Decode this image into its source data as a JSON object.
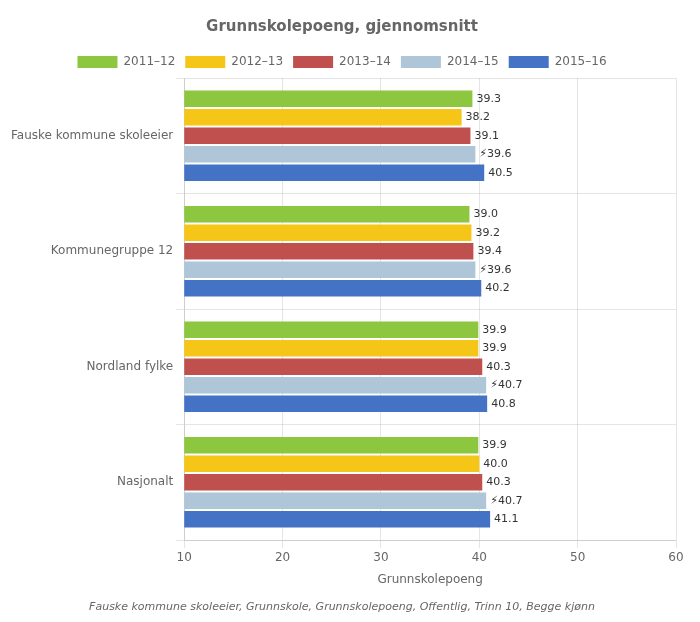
{
  "chart_data": {
    "type": "bar",
    "orientation": "horizontal",
    "title": "Grunnskolepoeng, gjennomsnitt",
    "xlabel": "Grunnskolepoeng",
    "annotations": [
      "Fauske kommune skoleeier, Grunnskole, Grunnskolepoeng, Offentlig, Trinn 10, Begge kjønn"
    ],
    "categories": [
      "Fauske kommune skoleeier",
      "Kommunegruppe 12",
      "Nordland fylke",
      "Nasjonalt"
    ],
    "series": [
      {
        "name": "2011–12",
        "color": "#8dc63f",
        "values": [
          39.3,
          39.0,
          39.9,
          39.9
        ],
        "value_labels": [
          "39.3",
          "39.0",
          "39.9",
          "39.9"
        ]
      },
      {
        "name": "2012–13",
        "color": "#f5c518",
        "values": [
          38.2,
          39.2,
          39.9,
          40.0
        ],
        "value_labels": [
          "38.2",
          "39.2",
          "39.9",
          "40.0"
        ]
      },
      {
        "name": "2013–14",
        "color": "#c0504d",
        "values": [
          39.1,
          39.4,
          40.3,
          40.3
        ],
        "value_labels": [
          "39.1",
          "39.4",
          "40.3",
          "40.3"
        ]
      },
      {
        "name": "2014–15",
        "color": "#aec6d8",
        "values": [
          39.6,
          39.6,
          40.7,
          40.7
        ],
        "value_labels": [
          "⚡39.6",
          "⚡39.6",
          "⚡40.7",
          "⚡40.7"
        ]
      },
      {
        "name": "2015–16",
        "color": "#4472c4",
        "values": [
          40.5,
          40.2,
          40.8,
          41.1
        ],
        "value_labels": [
          "40.5",
          "40.2",
          "40.8",
          "41.1"
        ]
      }
    ],
    "xlim": [
      10,
      60
    ],
    "xticks": [
      10,
      20,
      30,
      40,
      50,
      60
    ],
    "grid": true,
    "legend": "top",
    "data_labels": true
  }
}
